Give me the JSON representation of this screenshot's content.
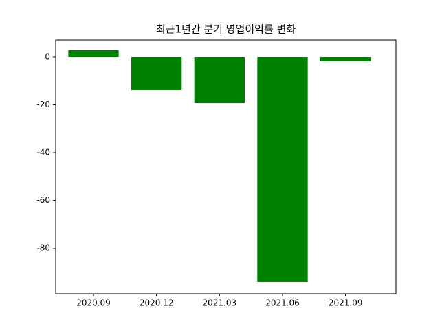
{
  "chart_data": {
    "type": "bar",
    "title": "최근1년간 분기 영업이익률 변화",
    "categories": [
      "2020.09",
      "2020.12",
      "2021.03",
      "2021.06",
      "2021.09"
    ],
    "values": [
      2.9,
      -13.8,
      -19.3,
      -94.1,
      -1.7
    ],
    "color": "#008000",
    "ylim": [
      -99,
      7.2
    ],
    "yticks": [
      0,
      -20,
      -40,
      -60,
      -80
    ]
  }
}
